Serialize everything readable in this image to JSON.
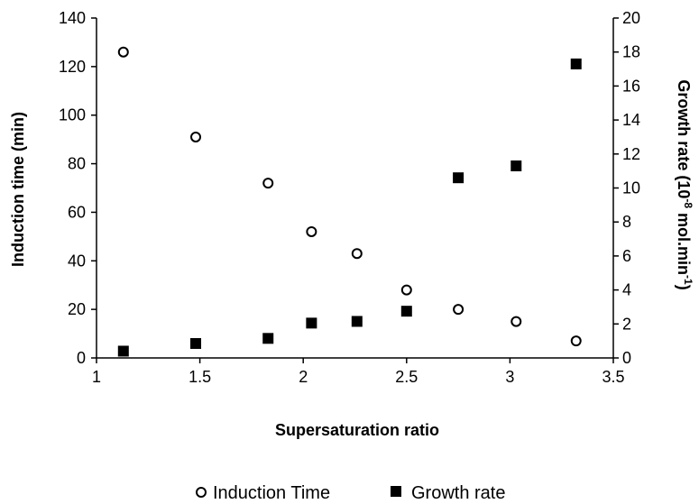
{
  "chart_data": {
    "type": "scatter",
    "xlabel": "Supersaturation ratio",
    "ylabel": "Induction time (min)",
    "y2label": {
      "prefix": "Growth rate (10",
      "exp1": "-8",
      "middle": " mol.min",
      "exp2": "-1",
      "suffix": ")"
    },
    "xlim": [
      1,
      3.5
    ],
    "xticks": [
      1,
      1.5,
      2,
      2.5,
      3,
      3.5
    ],
    "ylim": [
      0,
      140
    ],
    "yticks": [
      0,
      20,
      40,
      60,
      80,
      100,
      120,
      140
    ],
    "y2lim": [
      0,
      20
    ],
    "y2ticks": [
      0,
      2,
      4,
      6,
      8,
      10,
      12,
      14,
      16,
      18,
      20
    ],
    "grid": false,
    "legend_position": "bottom",
    "series": [
      {
        "name": "Induction Time",
        "axis": "left",
        "marker": "open-circle",
        "x": [
          1.13,
          1.48,
          1.83,
          2.04,
          2.26,
          2.5,
          2.75,
          3.03,
          3.32
        ],
        "y": [
          126,
          91,
          72,
          52,
          43,
          28,
          20,
          15,
          7
        ]
      },
      {
        "name": "Growth rate",
        "axis": "right",
        "marker": "filled-square",
        "x": [
          1.13,
          1.48,
          1.83,
          2.04,
          2.26,
          2.5,
          2.75,
          3.03,
          3.32
        ],
        "y": [
          0.4,
          0.85,
          1.15,
          2.05,
          2.15,
          2.75,
          10.6,
          11.3,
          17.3
        ]
      }
    ]
  }
}
